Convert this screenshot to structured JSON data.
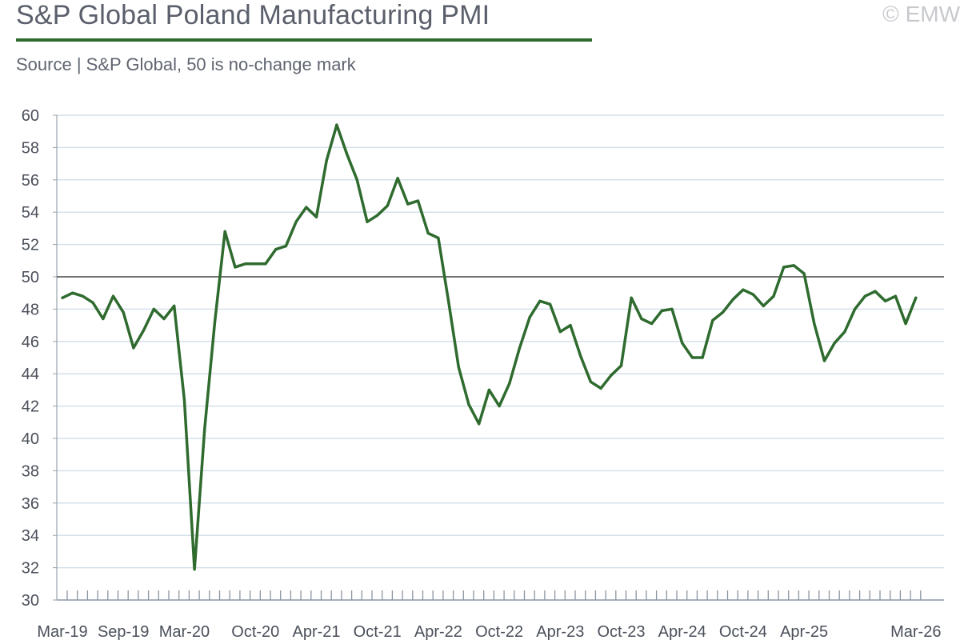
{
  "header": {
    "title": "S&P Global Poland Manufacturing PMI",
    "subtitle": "Source | S&P Global, 50 is no-change mark",
    "watermark": "© EMW"
  },
  "colors": {
    "line": "#2f6b2f",
    "title_rule": "#2f6b2f",
    "grid": "#d5e0ea",
    "reference_line": "#222222",
    "text": "#4a4f5a"
  },
  "chart_data": {
    "type": "line",
    "title": "S&P Global Poland Manufacturing PMI",
    "subtitle": "Source | S&P Global, 50 is no-change mark",
    "xlabel": "",
    "ylabel": "",
    "ylim": [
      30,
      60
    ],
    "y_ticks": [
      30,
      32,
      34,
      36,
      38,
      40,
      42,
      44,
      46,
      48,
      50,
      52,
      54,
      56,
      58,
      60
    ],
    "reference_line": 50,
    "grid": true,
    "legend": "none",
    "x_tick_labels": [
      "Mar-19",
      "Sep-19",
      "Mar-20",
      "Oct-20",
      "Apr-21",
      "Oct-21",
      "Apr-22",
      "Oct-22",
      "Apr-23",
      "Oct-23",
      "Apr-24",
      "Oct-24",
      "Apr-25",
      "Mar-26"
    ],
    "x_tick_label_months": [
      "2019-03",
      "2019-09",
      "2020-03",
      "2020-10",
      "2021-04",
      "2021-10",
      "2022-04",
      "2022-10",
      "2023-04",
      "2023-10",
      "2024-04",
      "2024-10",
      "2025-04",
      "2026-03"
    ],
    "x": [
      "2019-03",
      "2019-04",
      "2019-05",
      "2019-06",
      "2019-07",
      "2019-08",
      "2019-09",
      "2019-10",
      "2019-11",
      "2019-12",
      "2020-01",
      "2020-02",
      "2020-03",
      "2020-04",
      "2020-05",
      "2020-06",
      "2020-07",
      "2020-08",
      "2020-09",
      "2020-10",
      "2020-11",
      "2020-12",
      "2021-01",
      "2021-02",
      "2021-03",
      "2021-04",
      "2021-05",
      "2021-06",
      "2021-07",
      "2021-08",
      "2021-09",
      "2021-10",
      "2021-11",
      "2021-12",
      "2022-01",
      "2022-02",
      "2022-03",
      "2022-04",
      "2022-05",
      "2022-06",
      "2022-07",
      "2022-08",
      "2022-09",
      "2022-10",
      "2022-11",
      "2022-12",
      "2023-01",
      "2023-02",
      "2023-03",
      "2023-04",
      "2023-05",
      "2023-06",
      "2023-07",
      "2023-08",
      "2023-09",
      "2023-10",
      "2023-11",
      "2023-12",
      "2024-01",
      "2024-02",
      "2024-03",
      "2024-04",
      "2024-05",
      "2024-06",
      "2024-07",
      "2024-08",
      "2024-09",
      "2024-10",
      "2024-11",
      "2024-12",
      "2025-01",
      "2025-02",
      "2025-03",
      "2025-04",
      "2025-05",
      "2025-06",
      "2025-07",
      "2025-08",
      "2025-09",
      "2025-10",
      "2025-11",
      "2025-12",
      "2026-01",
      "2026-02",
      "2026-03"
    ],
    "series": [
      {
        "values": [
          48.7,
          49.0,
          48.8,
          48.4,
          47.4,
          48.8,
          47.8,
          45.6,
          46.7,
          48.0,
          47.4,
          48.2,
          42.4,
          31.9,
          40.6,
          47.2,
          52.8,
          50.6,
          50.8,
          50.8,
          50.8,
          51.7,
          51.9,
          53.4,
          54.3,
          53.7,
          57.2,
          59.4,
          57.6,
          56.0,
          53.4,
          53.8,
          54.4,
          56.1,
          54.5,
          54.7,
          52.7,
          52.4,
          48.5,
          44.4,
          42.1,
          40.9,
          43.0,
          42.0,
          43.4,
          45.6,
          47.5,
          48.5,
          48.3,
          46.6,
          47.0,
          45.1,
          43.5,
          43.1,
          43.9,
          44.5,
          48.7,
          47.4,
          47.1,
          47.9,
          48.0,
          45.9,
          45.0,
          45.0,
          47.3,
          47.8,
          48.6,
          49.2,
          48.9,
          48.2,
          48.8,
          50.6,
          50.7,
          50.2,
          47.1,
          44.8,
          45.9,
          46.6,
          48.0,
          48.8,
          49.1,
          48.5,
          48.8,
          47.1,
          48.7
        ]
      }
    ]
  }
}
